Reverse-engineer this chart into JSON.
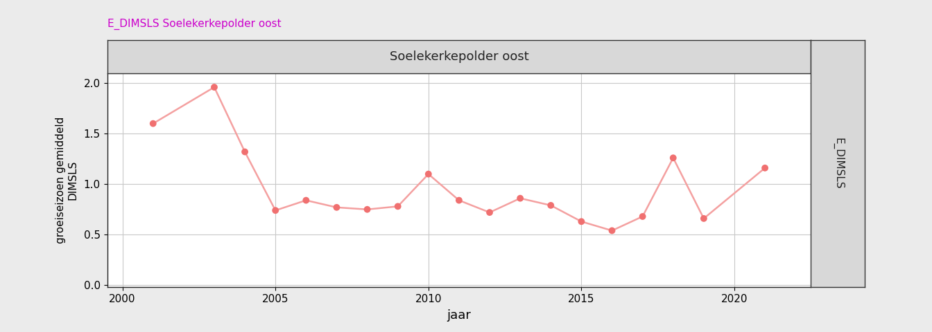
{
  "years": [
    2001,
    2003,
    2004,
    2005,
    2006,
    2007,
    2008,
    2009,
    2010,
    2011,
    2012,
    2013,
    2014,
    2015,
    2016,
    2017,
    2018,
    2019,
    2021
  ],
  "values": [
    1.6,
    1.96,
    1.32,
    0.74,
    0.84,
    0.77,
    0.75,
    0.78,
    1.1,
    0.84,
    0.72,
    0.86,
    0.79,
    0.63,
    0.54,
    0.68,
    1.26,
    0.66,
    1.16
  ],
  "line_color": "#F4A0A0",
  "marker_color": "#F07070",
  "title_panel": "Soelekerkepolder oost",
  "ylabel": "groeiseizoen gemiddeld\nDIMSLS",
  "xlabel": "jaar",
  "right_label": "E_DIMSLS",
  "top_label": "E_DIMSLS Soelekerkepolder oost",
  "top_label_color": "#CC00CC",
  "ylim": [
    -0.02,
    2.1
  ],
  "yticks": [
    0.0,
    0.5,
    1.0,
    1.5,
    2.0
  ],
  "xlim": [
    1999.5,
    2022.5
  ],
  "xticks": [
    2000,
    2005,
    2010,
    2015,
    2020
  ],
  "background_plot": "#FFFFFF",
  "background_outer": "#EBEBEB",
  "panel_header_color": "#D8D8D8",
  "right_strip_color": "#D8D8D8",
  "grid_color": "#C8C8C8",
  "spine_color": "#333333",
  "figsize": [
    13.44,
    4.8
  ],
  "dpi": 100
}
